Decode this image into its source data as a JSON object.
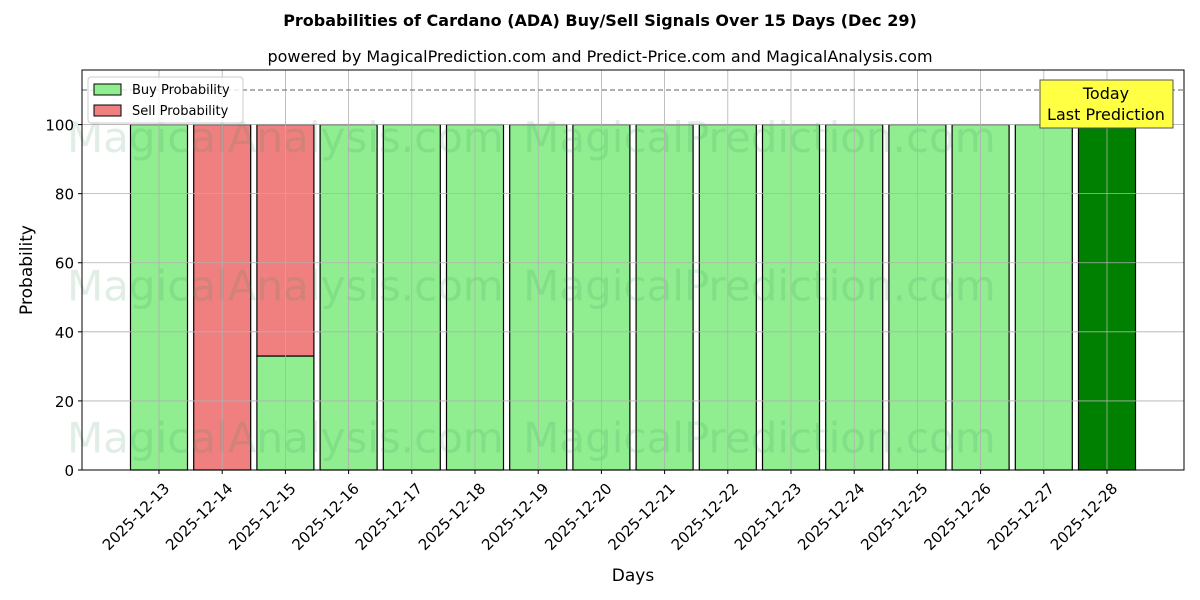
{
  "chart_data": {
    "type": "bar",
    "stacked": true,
    "title": "Probabilities of Cardano (ADA) Buy/Sell Signals Over 15 Days (Dec 29)",
    "subtitle": "powered by MagicalPrediction.com and Predict-Price.com and MagicalAnalysis.com",
    "xlabel": "Days",
    "ylabel": "Probability",
    "ylim": [
      0,
      115.8
    ],
    "yticks": [
      0,
      20,
      40,
      60,
      80,
      100
    ],
    "categories": [
      "2025-12-13",
      "2025-12-14",
      "2025-12-15",
      "2025-12-16",
      "2025-12-17",
      "2025-12-18",
      "2025-12-19",
      "2025-12-20",
      "2025-12-21",
      "2025-12-22",
      "2025-12-23",
      "2025-12-24",
      "2025-12-25",
      "2025-12-26",
      "2025-12-27",
      "2025-12-28"
    ],
    "series": [
      {
        "name": "Buy Probability",
        "color": "#90ee90",
        "values": [
          100,
          0,
          33,
          100,
          100,
          100,
          100,
          100,
          100,
          100,
          100,
          100,
          100,
          100,
          100,
          100
        ]
      },
      {
        "name": "Sell Probability",
        "color": "#f08080",
        "values": [
          0,
          100,
          67,
          0,
          0,
          0,
          0,
          0,
          0,
          0,
          0,
          0,
          0,
          0,
          0,
          0
        ]
      }
    ],
    "highlight": {
      "index": 15,
      "color": "#008000"
    },
    "reference_line": 110,
    "annotation": {
      "line1": "Today",
      "line2": "Last Prediction"
    },
    "watermarks": [
      "MagicalAnalysis.com",
      "MagicalPrediction.com"
    ],
    "grid": true,
    "legend": "top-left"
  }
}
